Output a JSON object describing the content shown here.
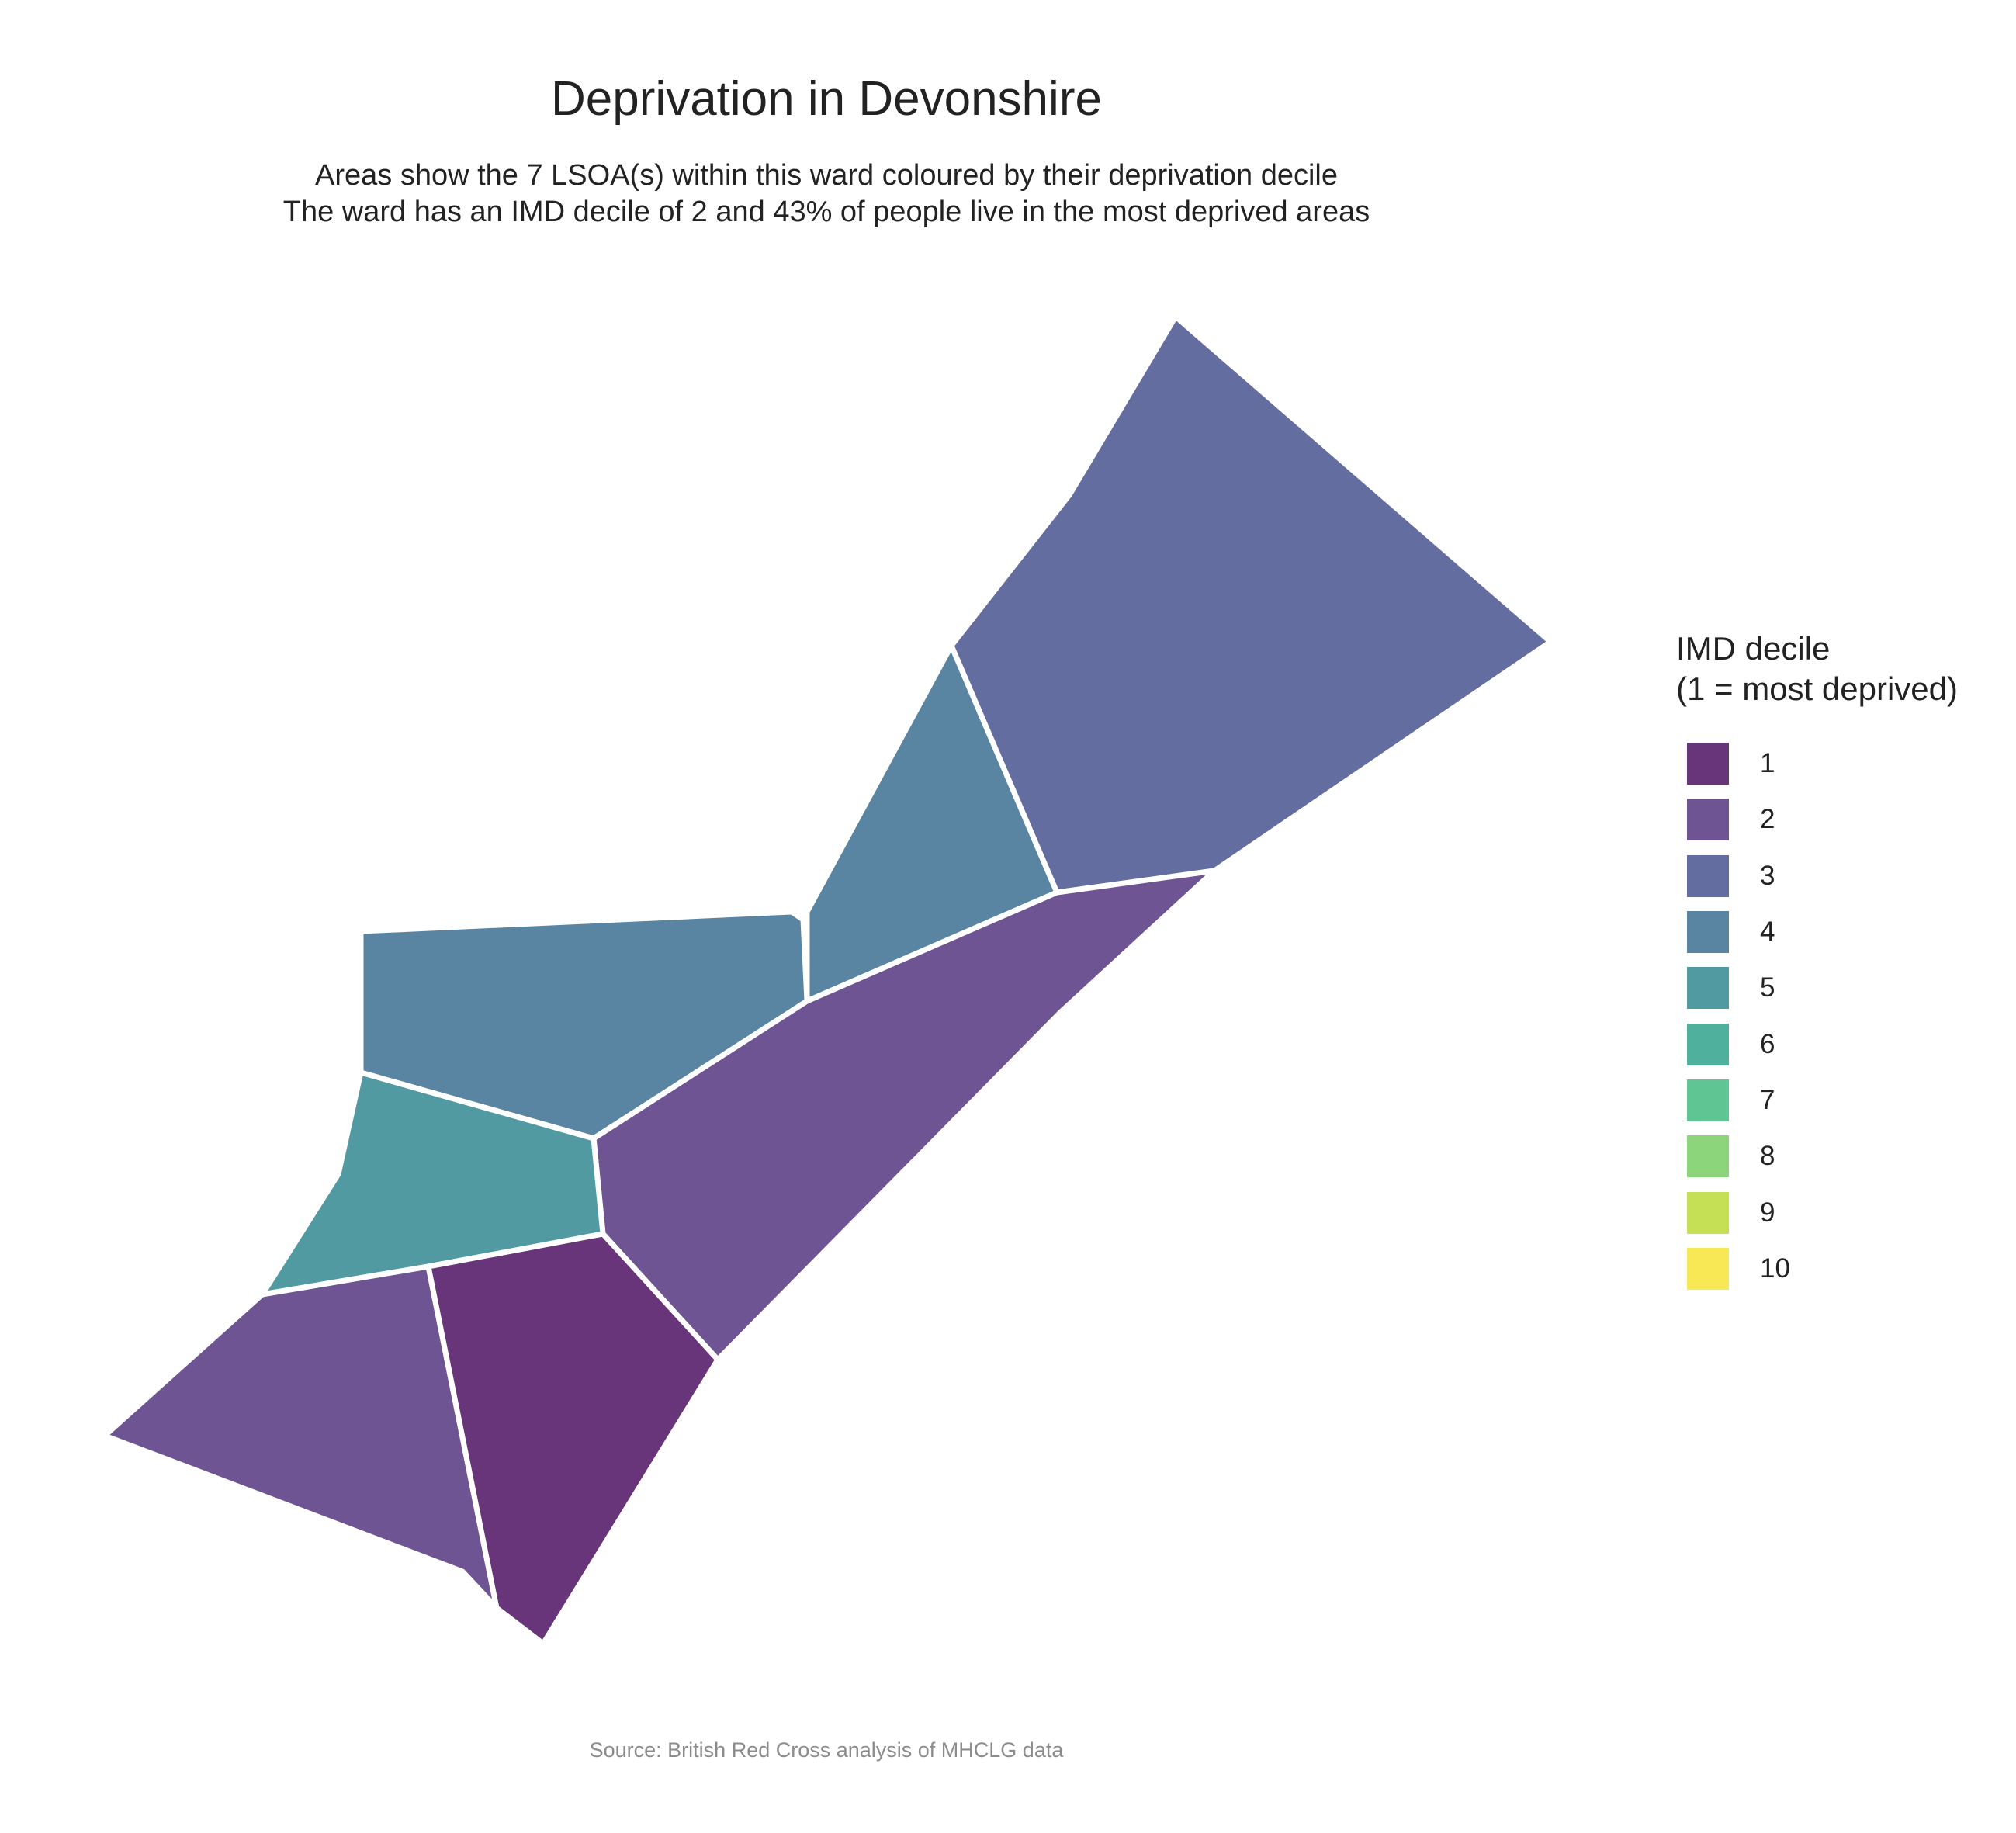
{
  "title": "Deprivation in Devonshire",
  "subtitle": [
    "Areas show the 7 LSOA(s) within this ward coloured by their deprivation decile",
    "The ward has an IMD decile of 2 and 43% of people live in the most deprived areas"
  ],
  "legend": {
    "title_lines": [
      "IMD decile",
      "(1 = most deprived)"
    ],
    "items": [
      {
        "label": "1",
        "color": "#68357a"
      },
      {
        "label": "2",
        "color": "#6e5493"
      },
      {
        "label": "3",
        "color": "#646d9f"
      },
      {
        "label": "4",
        "color": "#5984a2"
      },
      {
        "label": "5",
        "color": "#519aa2"
      },
      {
        "label": "6",
        "color": "#4fb09e"
      },
      {
        "label": "7",
        "color": "#5fc693"
      },
      {
        "label": "8",
        "color": "#8cd57b"
      },
      {
        "label": "9",
        "color": "#c5e055"
      },
      {
        "label": "10",
        "color": "#f9e855"
      }
    ]
  },
  "areas": [
    {
      "name": "lsoa-north-east",
      "decile": 3,
      "color": "#646d9f"
    },
    {
      "name": "lsoa-north-central",
      "decile": 4,
      "color": "#5984a2"
    },
    {
      "name": "lsoa-north-west",
      "decile": 4,
      "color": "#5984a2"
    },
    {
      "name": "lsoa-central-band",
      "decile": 2,
      "color": "#6e5493"
    },
    {
      "name": "lsoa-west",
      "decile": 5,
      "color": "#519aa2"
    },
    {
      "name": "lsoa-south-west",
      "decile": 2,
      "color": "#6e5493"
    },
    {
      "name": "lsoa-south",
      "decile": 1,
      "color": "#68357a"
    }
  ],
  "caption": "Source: British Red Cross analysis of MHCLG data"
}
